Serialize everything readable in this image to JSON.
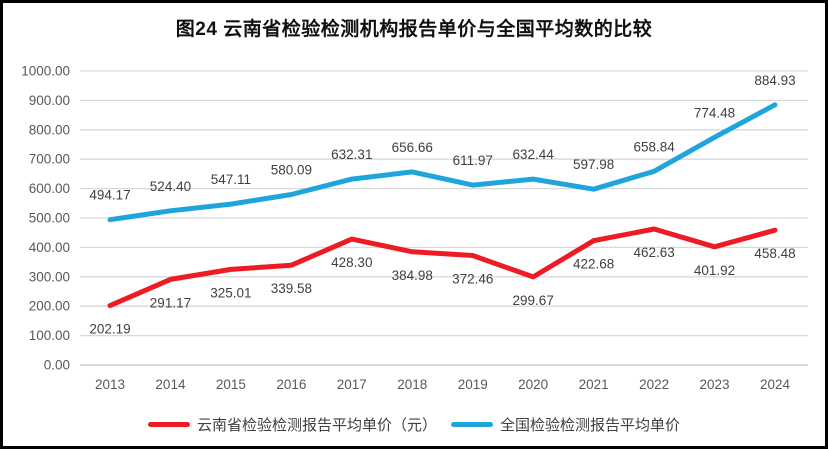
{
  "title": "图24 云南省检验检测机构报告单价与全国平均数的比较",
  "legend": {
    "yunnan_label": "云南省检验检测报告平均单价（元）",
    "national_label": "全国检验检测报告平均单价"
  },
  "chart_data": {
    "type": "line",
    "title": "图24 云南省检验检测机构报告单价与全国平均数的比较",
    "categories": [
      "2013",
      "2014",
      "2015",
      "2016",
      "2017",
      "2018",
      "2019",
      "2020",
      "2021",
      "2022",
      "2023",
      "2024"
    ],
    "series": [
      {
        "name": "云南省检验检测报告平均单价（元）",
        "color": "#ED1C24",
        "label_position": "below",
        "values": [
          202.19,
          291.17,
          325.01,
          339.58,
          428.3,
          384.98,
          372.46,
          299.67,
          422.68,
          462.63,
          401.92,
          458.48
        ]
      },
      {
        "name": "全国检验检测报告平均单价",
        "color": "#1FA5DC",
        "label_position": "above",
        "values": [
          494.17,
          524.4,
          547.11,
          580.09,
          632.31,
          656.66,
          611.97,
          632.44,
          597.98,
          658.84,
          774.48,
          884.93
        ]
      }
    ],
    "xlabel": "",
    "ylabel": "",
    "ylim": [
      0,
      1000
    ],
    "ytick_step": 100,
    "ytick_labels": [
      "0.00",
      "100.00",
      "200.00",
      "300.00",
      "400.00",
      "500.00",
      "600.00",
      "700.00",
      "800.00",
      "900.00",
      "1000.00"
    ],
    "data_label_format": "2-decimals",
    "grid": true,
    "legend_position": "bottom"
  },
  "colors": {
    "grid_line": "#D9D9D9",
    "zero_axis_line": "#BFBFBF",
    "tick_label": "#595959",
    "data_label": "#3F3F3F",
    "title_text": "#111111",
    "frame": "#000000",
    "background": "#FFFFFF"
  }
}
